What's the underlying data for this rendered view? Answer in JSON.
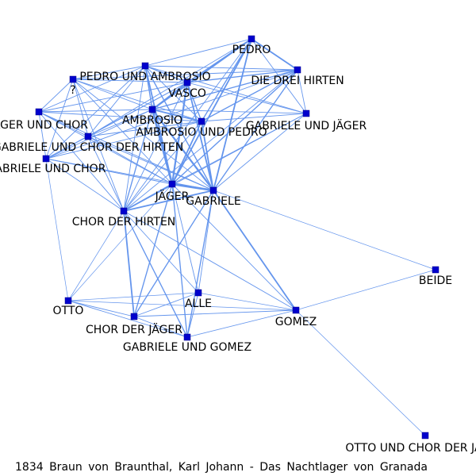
{
  "caption": "1834 Braun von Braunthal, Karl Johann - Das Nachtlager von Granada",
  "colors": {
    "edge": "#6495ED",
    "node": "#0000CD",
    "label": "#000000",
    "background": "#FFFFFF"
  },
  "nodes": [
    {
      "id": "PEDRO",
      "label": "PEDRO"
    },
    {
      "id": "DIE_DREI_HIRTEN",
      "label": "DIE DREI HIRTEN"
    },
    {
      "id": "PEDRO_UND_AMBROSIO",
      "label": "PEDRO UND AMBROSIO"
    },
    {
      "id": "Q",
      "label": "?"
    },
    {
      "id": "VASCO",
      "label": "VASCO"
    },
    {
      "id": "AMBROSIO",
      "label": "AMBROSIO"
    },
    {
      "id": "AMBROSIO_UND_PEDRO",
      "label": "AMBROSIO UND PEDRO"
    },
    {
      "id": "GABRIELE_UND_JAEGER",
      "label": "GABRIELE UND JÄGER"
    },
    {
      "id": "JAEGER_UND_CHOR",
      "label": "JÄGER UND CHOR"
    },
    {
      "id": "GABRIELE_UND_CHOR_DER_HIRTEN",
      "label": "GABRIELE UND CHOR DER HIRTEN"
    },
    {
      "id": "GABRIELE_UND_CHOR",
      "label": "GABRIELE UND CHOR"
    },
    {
      "id": "JAEGER",
      "label": "JÄGER"
    },
    {
      "id": "GABRIELE",
      "label": "GABRIELE"
    },
    {
      "id": "CHOR_DER_HIRTEN",
      "label": "CHOR DER HIRTEN"
    },
    {
      "id": "BEIDE",
      "label": "BEIDE"
    },
    {
      "id": "ALLE",
      "label": "ALLE"
    },
    {
      "id": "OTTO",
      "label": "OTTO"
    },
    {
      "id": "GOMEZ",
      "label": "GOMEZ"
    },
    {
      "id": "CHOR_DER_JAEGER",
      "label": "CHOR DER JÄGER"
    },
    {
      "id": "GABRIELE_UND_GOMEZ",
      "label": "GABRIELE UND GOMEZ"
    },
    {
      "id": "OTTO_UND_CHOR_DER_JAEGER",
      "label": "OTTO UND CHOR DER JÄGER"
    }
  ],
  "edges": [
    {
      "source": "JAEGER",
      "target": "GABRIELE",
      "weight": 3
    },
    {
      "source": "JAEGER",
      "target": "AMBROSIO",
      "weight": 3
    },
    {
      "source": "JAEGER",
      "target": "VASCO",
      "weight": 2.5
    },
    {
      "source": "JAEGER",
      "target": "PEDRO",
      "weight": 2
    },
    {
      "source": "JAEGER",
      "target": "AMBROSIO_UND_PEDRO",
      "weight": 2
    },
    {
      "source": "JAEGER",
      "target": "PEDRO_UND_AMBROSIO",
      "weight": 2
    },
    {
      "source": "JAEGER",
      "target": "DIE_DREI_HIRTEN",
      "weight": 1.5
    },
    {
      "source": "JAEGER",
      "target": "CHOR_DER_HIRTEN",
      "weight": 2
    },
    {
      "source": "JAEGER",
      "target": "CHOR_DER_JAEGER",
      "weight": 1.5
    },
    {
      "source": "JAEGER",
      "target": "GABRIELE_UND_GOMEZ",
      "weight": 1.5
    },
    {
      "source": "JAEGER",
      "target": "GOMEZ",
      "weight": 1
    },
    {
      "source": "JAEGER",
      "target": "ALLE",
      "weight": 1
    },
    {
      "source": "JAEGER",
      "target": "OTTO",
      "weight": 0.8
    },
    {
      "source": "JAEGER",
      "target": "Q",
      "weight": 1
    },
    {
      "source": "JAEGER",
      "target": "JAEGER_UND_CHOR",
      "weight": 1
    },
    {
      "source": "JAEGER",
      "target": "GABRIELE_UND_CHOR_DER_HIRTEN",
      "weight": 1
    },
    {
      "source": "JAEGER",
      "target": "GABRIELE_UND_CHOR",
      "weight": 1
    },
    {
      "source": "JAEGER",
      "target": "GABRIELE_UND_JAEGER",
      "weight": 1
    },
    {
      "source": "GABRIELE",
      "target": "AMBROSIO",
      "weight": 2.5
    },
    {
      "source": "GABRIELE",
      "target": "VASCO",
      "weight": 2
    },
    {
      "source": "GABRIELE",
      "target": "PEDRO",
      "weight": 2
    },
    {
      "source": "GABRIELE",
      "target": "AMBROSIO_UND_PEDRO",
      "weight": 2
    },
    {
      "source": "GABRIELE",
      "target": "PEDRO_UND_AMBROSIO",
      "weight": 1.5
    },
    {
      "source": "GABRIELE",
      "target": "DIE_DREI_HIRTEN",
      "weight": 1.5
    },
    {
      "source": "GABRIELE",
      "target": "CHOR_DER_HIRTEN",
      "weight": 2
    },
    {
      "source": "GABRIELE",
      "target": "CHOR_DER_JAEGER",
      "weight": 1.5
    },
    {
      "source": "GABRIELE",
      "target": "GABRIELE_UND_GOMEZ",
      "weight": 1.5
    },
    {
      "source": "GABRIELE",
      "target": "GOMEZ",
      "weight": 2
    },
    {
      "source": "GABRIELE",
      "target": "ALLE",
      "weight": 1
    },
    {
      "source": "GABRIELE",
      "target": "BEIDE",
      "weight": 0.8
    },
    {
      "source": "GABRIELE",
      "target": "Q",
      "weight": 1
    },
    {
      "source": "GABRIELE",
      "target": "JAEGER_UND_CHOR",
      "weight": 1
    },
    {
      "source": "GABRIELE",
      "target": "GABRIELE_UND_CHOR_DER_HIRTEN",
      "weight": 1
    },
    {
      "source": "GABRIELE",
      "target": "GABRIELE_UND_CHOR",
      "weight": 1
    },
    {
      "source": "GABRIELE",
      "target": "GABRIELE_UND_JAEGER",
      "weight": 1
    },
    {
      "source": "AMBROSIO",
      "target": "VASCO",
      "weight": 2
    },
    {
      "source": "AMBROSIO",
      "target": "PEDRO",
      "weight": 2
    },
    {
      "source": "AMBROSIO",
      "target": "AMBROSIO_UND_PEDRO",
      "weight": 2
    },
    {
      "source": "AMBROSIO",
      "target": "PEDRO_UND_AMBROSIO",
      "weight": 1.5
    },
    {
      "source": "AMBROSIO",
      "target": "DIE_DREI_HIRTEN",
      "weight": 1.5
    },
    {
      "source": "AMBROSIO",
      "target": "CHOR_DER_HIRTEN",
      "weight": 1.5
    },
    {
      "source": "AMBROSIO",
      "target": "Q",
      "weight": 1
    },
    {
      "source": "AMBROSIO",
      "target": "JAEGER_UND_CHOR",
      "weight": 1
    },
    {
      "source": "AMBROSIO",
      "target": "GABRIELE_UND_CHOR_DER_HIRTEN",
      "weight": 1
    },
    {
      "source": "AMBROSIO",
      "target": "GABRIELE_UND_CHOR",
      "weight": 1
    },
    {
      "source": "AMBROSIO",
      "target": "GABRIELE_UND_JAEGER",
      "weight": 1
    },
    {
      "source": "VASCO",
      "target": "PEDRO",
      "weight": 1.5
    },
    {
      "source": "VASCO",
      "target": "AMBROSIO_UND_PEDRO",
      "weight": 1.5
    },
    {
      "source": "VASCO",
      "target": "PEDRO_UND_AMBROSIO",
      "weight": 1.5
    },
    {
      "source": "VASCO",
      "target": "DIE_DREI_HIRTEN",
      "weight": 1.5
    },
    {
      "source": "VASCO",
      "target": "CHOR_DER_HIRTEN",
      "weight": 1
    },
    {
      "source": "VASCO",
      "target": "Q",
      "weight": 1
    },
    {
      "source": "VASCO",
      "target": "JAEGER_UND_CHOR",
      "weight": 1
    },
    {
      "source": "VASCO",
      "target": "GABRIELE_UND_CHOR_DER_HIRTEN",
      "weight": 1
    },
    {
      "source": "VASCO",
      "target": "GABRIELE_UND_CHOR",
      "weight": 1
    },
    {
      "source": "VASCO",
      "target": "GABRIELE_UND_JAEGER",
      "weight": 1
    },
    {
      "source": "PEDRO",
      "target": "DIE_DREI_HIRTEN",
      "weight": 2
    },
    {
      "source": "PEDRO",
      "target": "AMBROSIO_UND_PEDRO",
      "weight": 1.5
    },
    {
      "source": "PEDRO",
      "target": "PEDRO_UND_AMBROSIO",
      "weight": 1
    },
    {
      "source": "PEDRO",
      "target": "CHOR_DER_HIRTEN",
      "weight": 1
    },
    {
      "source": "PEDRO",
      "target": "GABRIELE_UND_JAEGER",
      "weight": 1
    },
    {
      "source": "PEDRO",
      "target": "GABRIELE_UND_CHOR_DER_HIRTEN",
      "weight": 1
    },
    {
      "source": "DIE_DREI_HIRTEN",
      "target": "AMBROSIO_UND_PEDRO",
      "weight": 1.5
    },
    {
      "source": "DIE_DREI_HIRTEN",
      "target": "PEDRO_UND_AMBROSIO",
      "weight": 1
    },
    {
      "source": "DIE_DREI_HIRTEN",
      "target": "CHOR_DER_HIRTEN",
      "weight": 1
    },
    {
      "source": "DIE_DREI_HIRTEN",
      "target": "GABRIELE_UND_JAEGER",
      "weight": 1
    },
    {
      "source": "DIE_DREI_HIRTEN",
      "target": "Q",
      "weight": 1
    },
    {
      "source": "DIE_DREI_HIRTEN",
      "target": "GABRIELE_UND_CHOR",
      "weight": 1
    },
    {
      "source": "PEDRO_UND_AMBROSIO",
      "target": "AMBROSIO_UND_PEDRO",
      "weight": 1
    },
    {
      "source": "PEDRO_UND_AMBROSIO",
      "target": "Q",
      "weight": 1
    },
    {
      "source": "PEDRO_UND_AMBROSIO",
      "target": "JAEGER_UND_CHOR",
      "weight": 1
    },
    {
      "source": "PEDRO_UND_AMBROSIO",
      "target": "GABRIELE_UND_CHOR_DER_HIRTEN",
      "weight": 1
    },
    {
      "source": "PEDRO_UND_AMBROSIO",
      "target": "GABRIELE_UND_CHOR",
      "weight": 1
    },
    {
      "source": "PEDRO_UND_AMBROSIO",
      "target": "CHOR_DER_HIRTEN",
      "weight": 1
    },
    {
      "source": "PEDRO_UND_AMBROSIO",
      "target": "GABRIELE_UND_JAEGER",
      "weight": 1
    },
    {
      "source": "AMBROSIO_UND_PEDRO",
      "target": "CHOR_DER_HIRTEN",
      "weight": 1
    },
    {
      "source": "AMBROSIO_UND_PEDRO",
      "target": "GABRIELE_UND_JAEGER",
      "weight": 1
    },
    {
      "source": "AMBROSIO_UND_PEDRO",
      "target": "Q",
      "weight": 1
    },
    {
      "source": "AMBROSIO_UND_PEDRO",
      "target": "JAEGER_UND_CHOR",
      "weight": 1
    },
    {
      "source": "AMBROSIO_UND_PEDRO",
      "target": "GABRIELE_UND_CHOR_DER_HIRTEN",
      "weight": 1
    },
    {
      "source": "AMBROSIO_UND_PEDRO",
      "target": "GABRIELE_UND_CHOR",
      "weight": 1
    },
    {
      "source": "Q",
      "target": "JAEGER_UND_CHOR",
      "weight": 1
    },
    {
      "source": "Q",
      "target": "GABRIELE_UND_CHOR_DER_HIRTEN",
      "weight": 1
    },
    {
      "source": "Q",
      "target": "GABRIELE_UND_CHOR",
      "weight": 1
    },
    {
      "source": "Q",
      "target": "CHOR_DER_HIRTEN",
      "weight": 1
    },
    {
      "source": "JAEGER_UND_CHOR",
      "target": "GABRIELE_UND_CHOR_DER_HIRTEN",
      "weight": 1
    },
    {
      "source": "JAEGER_UND_CHOR",
      "target": "GABRIELE_UND_CHOR",
      "weight": 1
    },
    {
      "source": "JAEGER_UND_CHOR",
      "target": "CHOR_DER_HIRTEN",
      "weight": 1
    },
    {
      "source": "GABRIELE_UND_CHOR_DER_HIRTEN",
      "target": "GABRIELE_UND_CHOR",
      "weight": 1
    },
    {
      "source": "GABRIELE_UND_CHOR_DER_HIRTEN",
      "target": "CHOR_DER_HIRTEN",
      "weight": 1
    },
    {
      "source": "GABRIELE_UND_CHOR",
      "target": "CHOR_DER_HIRTEN",
      "weight": 1
    },
    {
      "source": "GABRIELE_UND_CHOR",
      "target": "OTTO",
      "weight": 0.8
    },
    {
      "source": "CHOR_DER_HIRTEN",
      "target": "GABRIELE_UND_JAEGER",
      "weight": 1
    },
    {
      "source": "CHOR_DER_HIRTEN",
      "target": "CHOR_DER_JAEGER",
      "weight": 2
    },
    {
      "source": "CHOR_DER_HIRTEN",
      "target": "GABRIELE_UND_GOMEZ",
      "weight": 1.5
    },
    {
      "source": "CHOR_DER_HIRTEN",
      "target": "ALLE",
      "weight": 1
    },
    {
      "source": "CHOR_DER_HIRTEN",
      "target": "GOMEZ",
      "weight": 1
    },
    {
      "source": "CHOR_DER_HIRTEN",
      "target": "OTTO",
      "weight": 0.8
    },
    {
      "source": "ALLE",
      "target": "CHOR_DER_JAEGER",
      "weight": 1
    },
    {
      "source": "ALLE",
      "target": "GABRIELE_UND_GOMEZ",
      "weight": 1
    },
    {
      "source": "ALLE",
      "target": "OTTO",
      "weight": 0.8
    },
    {
      "source": "ALLE",
      "target": "GOMEZ",
      "weight": 0.8
    },
    {
      "source": "OTTO",
      "target": "CHOR_DER_JAEGER",
      "weight": 1
    },
    {
      "source": "OTTO",
      "target": "GABRIELE_UND_GOMEZ",
      "weight": 1
    },
    {
      "source": "OTTO",
      "target": "GOMEZ",
      "weight": 0.8
    },
    {
      "source": "CHOR_DER_JAEGER",
      "target": "GABRIELE_UND_GOMEZ",
      "weight": 1
    },
    {
      "source": "CHOR_DER_JAEGER",
      "target": "GOMEZ",
      "weight": 1
    },
    {
      "source": "GABRIELE_UND_GOMEZ",
      "target": "GOMEZ",
      "weight": 1
    },
    {
      "source": "GOMEZ",
      "target": "BEIDE",
      "weight": 0.8
    },
    {
      "source": "GOMEZ",
      "target": "OTTO_UND_CHOR_DER_JAEGER",
      "weight": 0.8
    }
  ]
}
